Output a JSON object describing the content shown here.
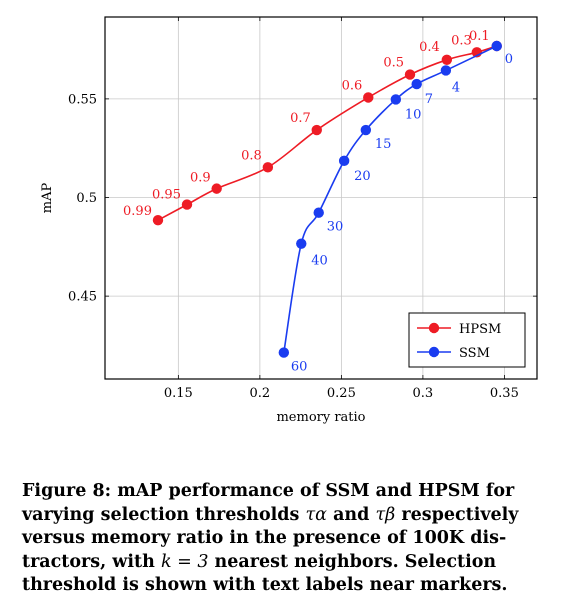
{
  "chart_data": {
    "type": "line",
    "xlabel": "memory ratio",
    "ylabel": "mAP",
    "xlim": [
      0.105,
      0.37
    ],
    "ylim": [
      0.408,
      0.5915
    ],
    "x_ticks": [
      0.15,
      0.2,
      0.25,
      0.3,
      0.35
    ],
    "x_tick_labels": [
      "0.15",
      "0.2",
      "0.25",
      "0.3",
      "0.35"
    ],
    "y_ticks": [
      0.45,
      0.5,
      0.55
    ],
    "y_tick_labels": [
      "0.45",
      "0.5",
      "0.55"
    ],
    "grid": true,
    "legend_position": "bottom-right",
    "series": [
      {
        "name": "HPSM",
        "color": "#ee1c25",
        "x": [
          0.1375,
          0.1553,
          0.1735,
          0.2049,
          0.2349,
          0.2665,
          0.2921,
          0.3147,
          0.3331,
          0.3453
        ],
        "y": [
          0.4885,
          0.4964,
          0.5045,
          0.5153,
          0.5342,
          0.5507,
          0.5623,
          0.5698,
          0.5736,
          0.5768
        ],
        "labels": [
          "0.99",
          "0.95",
          "0.9",
          "0.8",
          "0.7",
          "0.6",
          "0.5",
          "0.4",
          "0.3",
          "0.1"
        ]
      },
      {
        "name": "SSM",
        "color": "#1a3cf0",
        "x": [
          0.2147,
          0.2254,
          0.2361,
          0.2517,
          0.265,
          0.2834,
          0.2962,
          0.3141,
          0.3453
        ],
        "y": [
          0.4214,
          0.4766,
          0.4923,
          0.5186,
          0.5342,
          0.5497,
          0.5575,
          0.5644,
          0.5768
        ],
        "labels": [
          "60",
          "40",
          "30",
          "20",
          "15",
          "10",
          "7",
          "4",
          "0"
        ]
      }
    ]
  },
  "caption": {
    "line1": "Figure 8: mAP performance of SSM and HPSM for",
    "line2a": "varying selection thresholds ",
    "tau_alpha": "τα",
    "line2b": " and ",
    "tau_beta": "τβ",
    "line2c": " respectively",
    "line3": "versus memory ratio in the presence of 100K dis-",
    "line4a": "tractors, with ",
    "k_eq": "k = 3",
    "line4b": " nearest neighbors. Selection",
    "line5": "threshold is shown with text labels near markers."
  }
}
